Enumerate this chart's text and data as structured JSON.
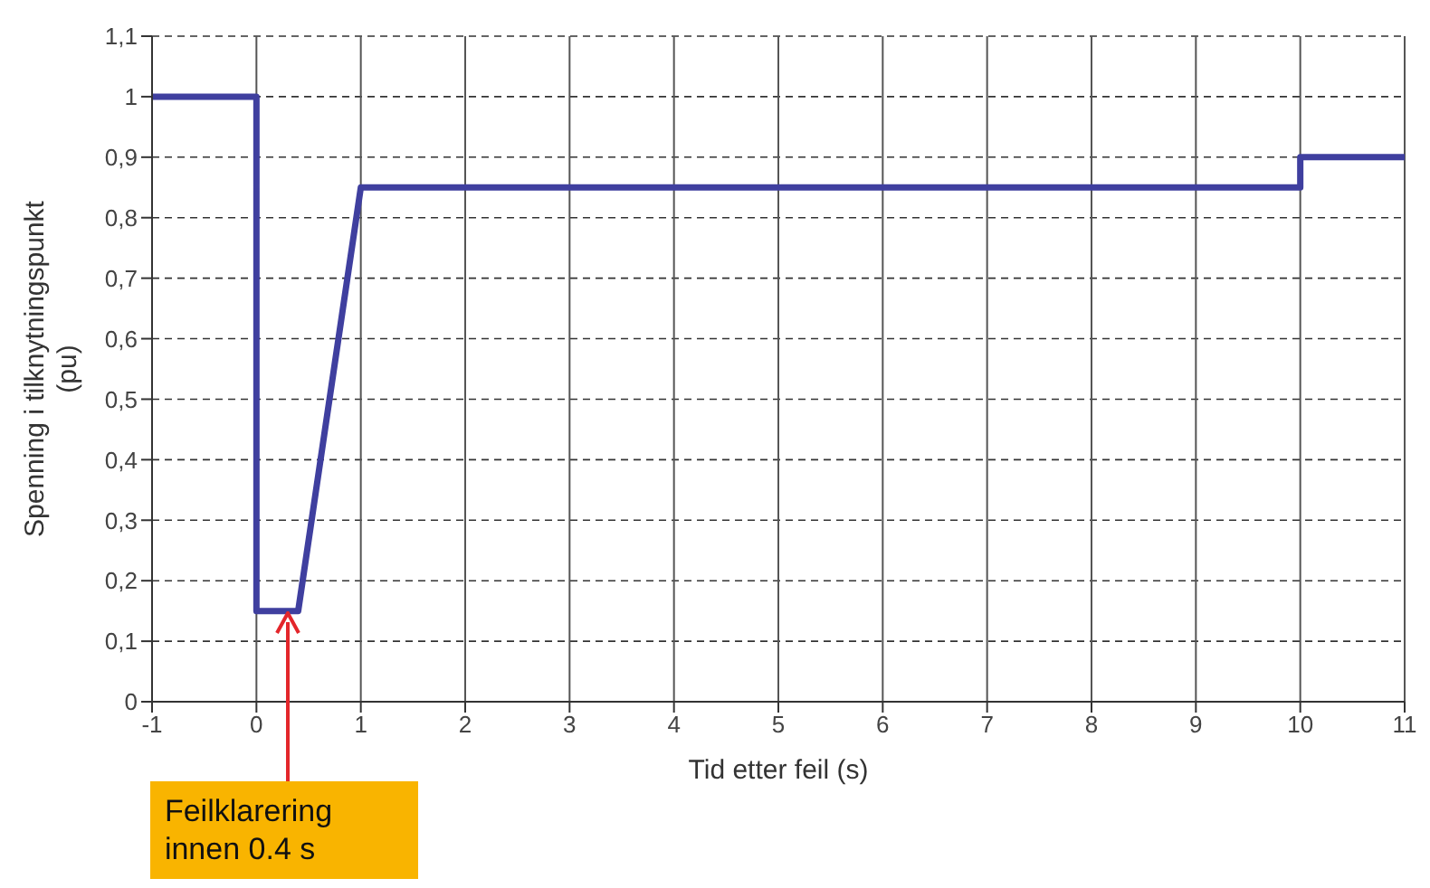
{
  "chart_data": {
    "type": "line",
    "xlabel": "Tid etter feil (s)",
    "ylabel": "Spenning i tilknytningspunkt (pu)",
    "x": [
      -1,
      0,
      0,
      0.4,
      1,
      10,
      10,
      11
    ],
    "series": [
      {
        "color": "#3f3f9f",
        "values": [
          1,
          1,
          0.15,
          0.15,
          0.85,
          0.85,
          0.9,
          0.9
        ]
      }
    ],
    "xlim": [
      -1,
      11
    ],
    "xticks": [
      -1,
      0,
      1,
      2,
      3,
      4,
      5,
      6,
      7,
      8,
      9,
      10,
      11
    ],
    "ylim": [
      0,
      1.1
    ],
    "yticks": [
      0,
      {
        "value": 0.1,
        "label": "0,1"
      },
      {
        "value": 0.2,
        "label": "0,2"
      },
      {
        "value": 0.3,
        "label": "0,3"
      },
      {
        "value": 0.4,
        "label": "0,4"
      },
      {
        "value": 0.5,
        "label": "0,5"
      },
      {
        "value": 0.6,
        "label": "0,6"
      },
      {
        "value": 0.7,
        "label": "0,7"
      },
      {
        "value": 0.8,
        "label": "0,8"
      },
      {
        "value": 0.9,
        "label": "0,9"
      },
      1,
      {
        "value": 1.1,
        "label": "1,1"
      }
    ],
    "grid": true,
    "marker": "none",
    "line_style": "solid",
    "annotations": [
      {
        "text": "Feilklarering innen 0.4 s",
        "x": 0.3,
        "y": 0.15
      }
    ]
  }
}
